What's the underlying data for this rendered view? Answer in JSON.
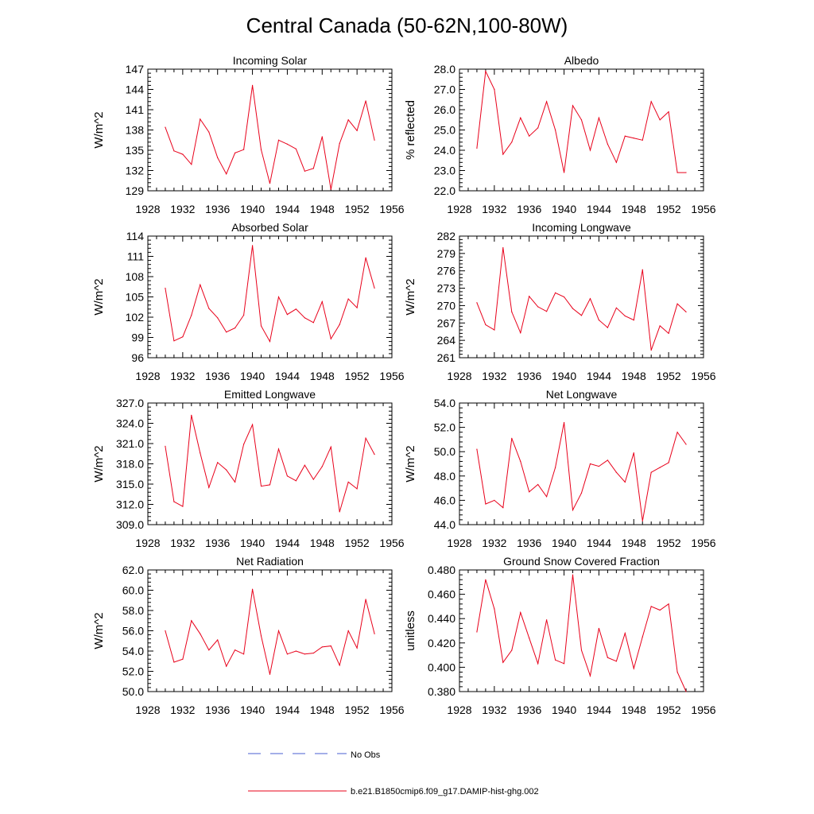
{
  "title": "Central Canada (50-62N,100-80W)",
  "legend": {
    "items": [
      {
        "label": "No Obs",
        "color": "#4a5fd0",
        "style": "dashed"
      },
      {
        "label": "b.e21.B1850cmip6.f09_g17.DAMIP-hist-ghg.002",
        "color": "#e8001a",
        "style": "solid"
      }
    ]
  },
  "line_color": "#e8001a",
  "chart_data": [
    {
      "type": "line",
      "title": "Incoming Solar",
      "ylabel": "W/m^2",
      "xlim": [
        1928,
        1956
      ],
      "xticks": [
        1928,
        1932,
        1936,
        1940,
        1944,
        1948,
        1952,
        1956
      ],
      "ylim": [
        129,
        147
      ],
      "yticks": [
        "129",
        "132",
        "135",
        "138",
        "141",
        "144",
        "147"
      ],
      "series": [
        {
          "x": [
            1930,
            1931,
            1932,
            1933,
            1934,
            1935,
            1936,
            1937,
            1938,
            1939,
            1940,
            1941,
            1942,
            1943,
            1944,
            1945,
            1946,
            1947,
            1948,
            1949,
            1950,
            1951,
            1952,
            1953,
            1954
          ],
          "values": [
            138.4,
            134.9,
            134.4,
            132.9,
            139.6,
            137.7,
            133.9,
            131.5,
            134.6,
            135.1,
            144.6,
            135.1,
            130.1,
            136.5,
            135.9,
            135.2,
            131.9,
            132.3,
            137.0,
            129.2,
            136.0,
            139.5,
            137.9,
            142.3,
            136.5
          ]
        }
      ]
    },
    {
      "type": "line",
      "title": "Albedo",
      "ylabel": "% reflected",
      "xlim": [
        1928,
        1956
      ],
      "xticks": [
        1928,
        1932,
        1936,
        1940,
        1944,
        1948,
        1952,
        1956
      ],
      "ylim": [
        22.0,
        28.0
      ],
      "yticks": [
        "22.0",
        "23.0",
        "24.0",
        "25.0",
        "26.0",
        "27.0",
        "28.0"
      ],
      "series": [
        {
          "x": [
            1930,
            1931,
            1932,
            1933,
            1934,
            1935,
            1936,
            1937,
            1938,
            1939,
            1940,
            1941,
            1942,
            1943,
            1944,
            1945,
            1946,
            1947,
            1948,
            1949,
            1950,
            1951,
            1952,
            1953,
            1954
          ],
          "values": [
            24.1,
            27.9,
            27.0,
            23.8,
            24.4,
            25.6,
            24.7,
            25.1,
            26.4,
            25.0,
            22.9,
            26.2,
            25.5,
            24.0,
            25.6,
            24.3,
            23.4,
            24.7,
            24.6,
            24.5,
            26.4,
            25.5,
            25.9,
            22.9,
            22.9
          ]
        }
      ]
    },
    {
      "type": "line",
      "title": "Absorbed Solar",
      "ylabel": "W/m^2",
      "xlim": [
        1928,
        1956
      ],
      "xticks": [
        1928,
        1932,
        1936,
        1940,
        1944,
        1948,
        1952,
        1956
      ],
      "ylim": [
        96,
        114
      ],
      "yticks": [
        "96",
        "99",
        "102",
        "105",
        "108",
        "111",
        "114"
      ],
      "series": [
        {
          "x": [
            1930,
            1931,
            1932,
            1933,
            1934,
            1935,
            1936,
            1937,
            1938,
            1939,
            1940,
            1941,
            1942,
            1943,
            1944,
            1945,
            1946,
            1947,
            1948,
            1949,
            1950,
            1951,
            1952,
            1953,
            1954
          ],
          "values": [
            106.3,
            98.5,
            99.1,
            102.3,
            106.8,
            103.3,
            101.9,
            99.8,
            100.4,
            102.3,
            112.6,
            100.7,
            98.4,
            105.0,
            102.4,
            103.2,
            101.9,
            101.2,
            104.3,
            98.8,
            100.9,
            104.7,
            103.4,
            110.8,
            106.3
          ]
        }
      ]
    },
    {
      "type": "line",
      "title": "Incoming Longwave",
      "ylabel": "W/m^2",
      "xlim": [
        1928,
        1956
      ],
      "xticks": [
        1928,
        1932,
        1936,
        1940,
        1944,
        1948,
        1952,
        1956
      ],
      "ylim": [
        261,
        282
      ],
      "yticks": [
        "261",
        "264",
        "267",
        "270",
        "273",
        "276",
        "279",
        "282"
      ],
      "series": [
        {
          "x": [
            1930,
            1931,
            1932,
            1933,
            1934,
            1935,
            1936,
            1937,
            1938,
            1939,
            1940,
            1941,
            1942,
            1943,
            1944,
            1945,
            1946,
            1947,
            1948,
            1949,
            1950,
            1951,
            1952,
            1953,
            1954
          ],
          "values": [
            270.5,
            266.7,
            265.8,
            280.0,
            268.9,
            265.3,
            271.6,
            269.8,
            269.0,
            272.2,
            271.5,
            269.5,
            268.3,
            271.2,
            267.5,
            266.2,
            269.6,
            268.2,
            267.5,
            276.2,
            262.3,
            266.5,
            265.2,
            270.3,
            268.9
          ]
        }
      ]
    },
    {
      "type": "line",
      "title": "Emitted Longwave",
      "ylabel": "W/m^2",
      "xlim": [
        1928,
        1956
      ],
      "xticks": [
        1928,
        1932,
        1936,
        1940,
        1944,
        1948,
        1952,
        1956
      ],
      "ylim": [
        309.0,
        327.0
      ],
      "yticks": [
        "309.0",
        "312.0",
        "315.0",
        "318.0",
        "321.0",
        "324.0",
        "327.0"
      ],
      "series": [
        {
          "x": [
            1930,
            1931,
            1932,
            1933,
            1934,
            1935,
            1936,
            1937,
            1938,
            1939,
            1940,
            1941,
            1942,
            1943,
            1944,
            1945,
            1946,
            1947,
            1948,
            1949,
            1950,
            1951,
            1952,
            1953,
            1954
          ],
          "values": [
            320.6,
            312.4,
            311.7,
            325.2,
            319.6,
            314.5,
            318.2,
            317.1,
            315.3,
            320.9,
            323.8,
            314.7,
            314.9,
            320.2,
            316.2,
            315.5,
            317.8,
            315.7,
            317.6,
            320.5,
            310.9,
            315.3,
            314.3,
            321.8,
            319.4
          ]
        }
      ]
    },
    {
      "type": "line",
      "title": "Net Longwave",
      "ylabel": "W/m^2",
      "xlim": [
        1928,
        1956
      ],
      "xticks": [
        1928,
        1932,
        1936,
        1940,
        1944,
        1948,
        1952,
        1956
      ],
      "ylim": [
        44.0,
        54.0
      ],
      "yticks": [
        "44.0",
        "46.0",
        "48.0",
        "50.0",
        "52.0",
        "54.0"
      ],
      "series": [
        {
          "x": [
            1930,
            1931,
            1932,
            1933,
            1934,
            1935,
            1936,
            1937,
            1938,
            1939,
            1940,
            1941,
            1942,
            1943,
            1944,
            1945,
            1946,
            1947,
            1948,
            1949,
            1950,
            1951,
            1952,
            1953,
            1954
          ],
          "values": [
            50.2,
            45.7,
            46.0,
            45.4,
            51.1,
            49.2,
            46.7,
            47.3,
            46.3,
            48.7,
            52.4,
            45.2,
            46.6,
            49.0,
            48.8,
            49.3,
            48.3,
            47.5,
            49.9,
            44.3,
            48.3,
            48.7,
            49.1,
            51.6,
            50.6
          ]
        }
      ]
    },
    {
      "type": "line",
      "title": "Net Radiation",
      "ylabel": "W/m^2",
      "xlim": [
        1928,
        1956
      ],
      "xticks": [
        1928,
        1932,
        1936,
        1940,
        1944,
        1948,
        1952,
        1956
      ],
      "ylim": [
        50.0,
        62.0
      ],
      "yticks": [
        "50.0",
        "52.0",
        "54.0",
        "56.0",
        "58.0",
        "60.0",
        "62.0"
      ],
      "series": [
        {
          "x": [
            1930,
            1931,
            1932,
            1933,
            1934,
            1935,
            1936,
            1937,
            1938,
            1939,
            1940,
            1941,
            1942,
            1943,
            1944,
            1945,
            1946,
            1947,
            1948,
            1949,
            1950,
            1951,
            1952,
            1953,
            1954
          ],
          "values": [
            56.0,
            52.9,
            53.2,
            57.0,
            55.7,
            54.1,
            55.1,
            52.5,
            54.1,
            53.7,
            60.1,
            55.5,
            51.7,
            56.0,
            53.7,
            54.0,
            53.7,
            53.8,
            54.4,
            54.5,
            52.6,
            56.0,
            54.3,
            59.1,
            55.7
          ]
        }
      ]
    },
    {
      "type": "line",
      "title": "Ground Snow Covered Fraction",
      "ylabel": "unitless",
      "xlim": [
        1928,
        1956
      ],
      "xticks": [
        1928,
        1932,
        1936,
        1940,
        1944,
        1948,
        1952,
        1956
      ],
      "ylim": [
        0.38,
        0.48
      ],
      "yticks": [
        "0.380",
        "0.400",
        "0.420",
        "0.440",
        "0.460",
        "0.480"
      ],
      "series": [
        {
          "x": [
            1930,
            1931,
            1932,
            1933,
            1934,
            1935,
            1936,
            1937,
            1938,
            1939,
            1940,
            1941,
            1942,
            1943,
            1944,
            1945,
            1946,
            1947,
            1948,
            1949,
            1950,
            1951,
            1952,
            1953,
            1954
          ],
          "values": [
            0.429,
            0.472,
            0.448,
            0.404,
            0.414,
            0.445,
            0.424,
            0.403,
            0.439,
            0.406,
            0.403,
            0.476,
            0.414,
            0.393,
            0.432,
            0.408,
            0.405,
            0.428,
            0.399,
            0.425,
            0.45,
            0.447,
            0.452,
            0.396,
            0.38
          ]
        }
      ]
    }
  ]
}
